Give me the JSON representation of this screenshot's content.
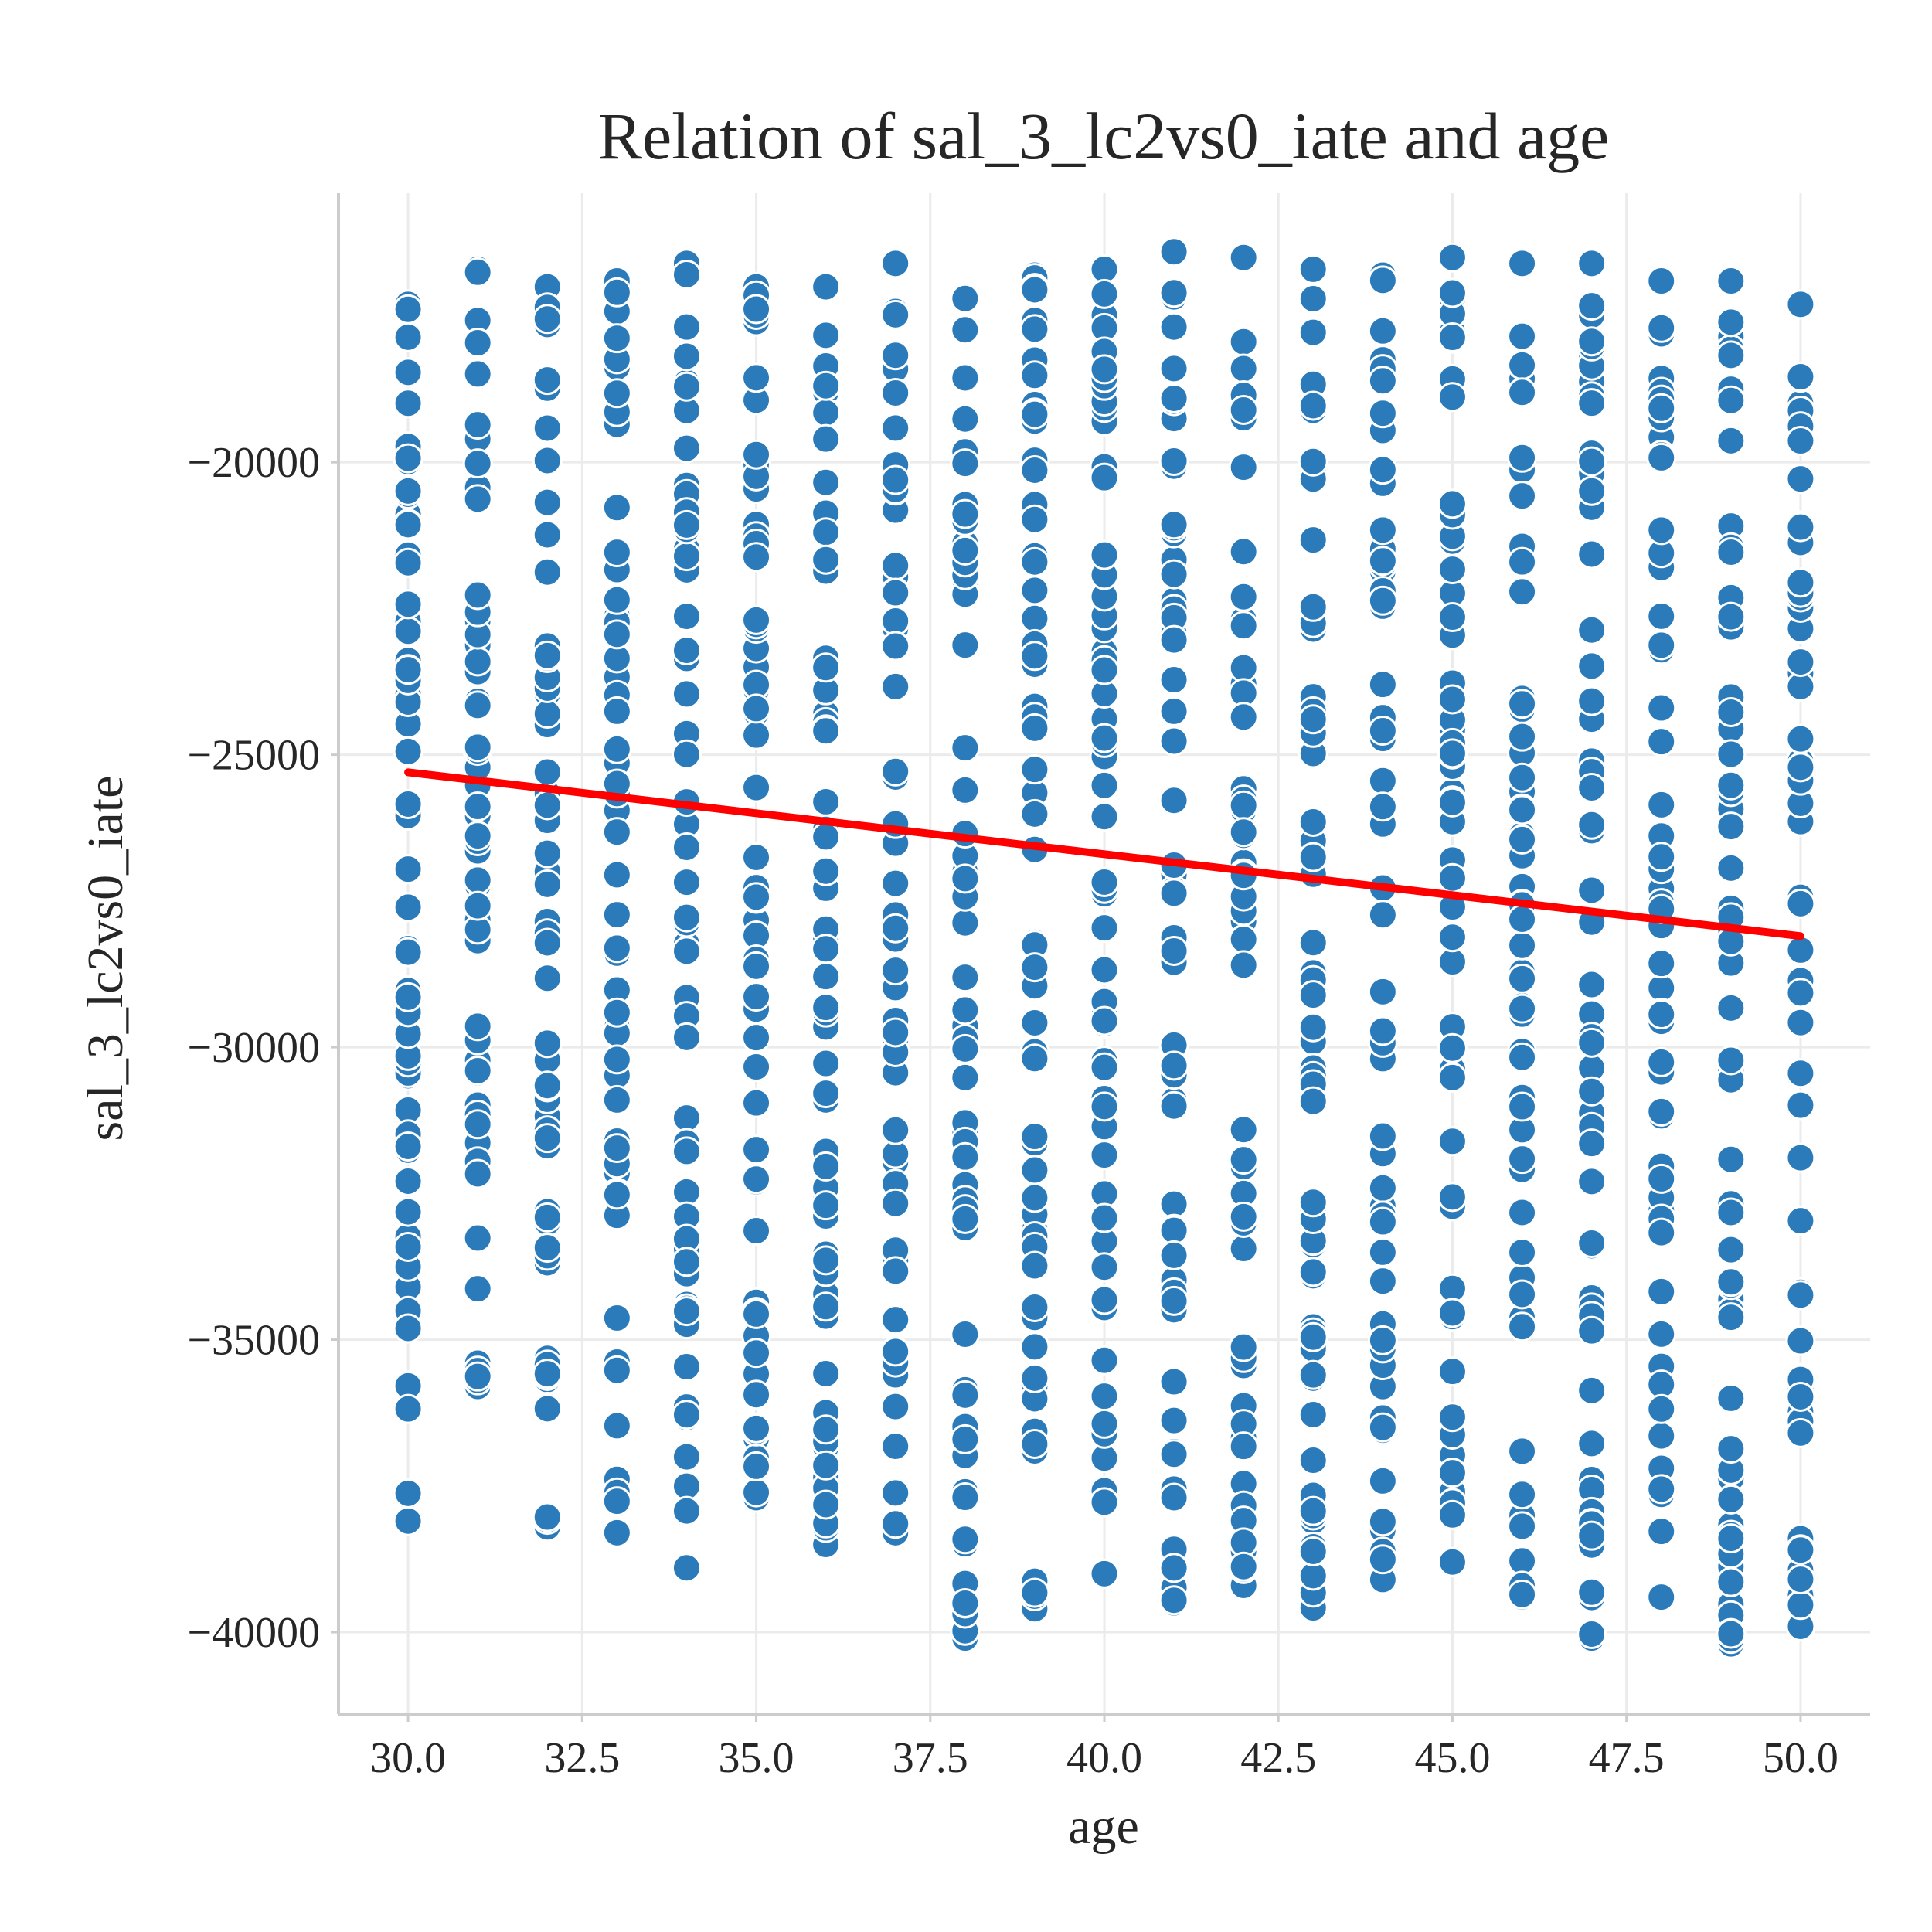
{
  "chart_data": {
    "type": "scatter",
    "title": "Relation of sal_3_lc2vs0_iate and age",
    "xlabel": "age",
    "ylabel": "sal_3_lc2vs0_iate",
    "xlim": [
      29.0,
      51.0
    ],
    "ylim": [
      -41400,
      -15400
    ],
    "xticks": [
      30.0,
      32.5,
      35.0,
      37.5,
      40.0,
      42.5,
      45.0,
      47.5,
      50.0
    ],
    "xtick_labels": [
      "30.0",
      "32.5",
      "35.0",
      "37.5",
      "40.0",
      "42.5",
      "45.0",
      "47.5",
      "50.0"
    ],
    "yticks": [
      -20000,
      -25000,
      -30000,
      -35000,
      -40000
    ],
    "ytick_labels": [
      "−20000",
      "−25000",
      "−30000",
      "−35000",
      "−40000"
    ],
    "grid": true,
    "point_color": "#2b7bba",
    "line_color": "#ff0000",
    "series": [
      {
        "kind": "scatter",
        "columns": [
          {
            "x": 30,
            "min": -38100,
            "max": -17300
          },
          {
            "x": 31,
            "min": -35800,
            "max": -16700
          },
          {
            "x": 32,
            "min": -38200,
            "max": -17000
          },
          {
            "x": 33,
            "min": -38300,
            "max": -16900
          },
          {
            "x": 34,
            "min": -38900,
            "max": -16600
          },
          {
            "x": 35,
            "min": -37700,
            "max": -17000
          },
          {
            "x": 36,
            "min": -38500,
            "max": -17000
          },
          {
            "x": 37,
            "min": -38300,
            "max": -16600
          },
          {
            "x": 38,
            "min": -40100,
            "max": -17200
          },
          {
            "x": 39,
            "min": -39600,
            "max": -16800
          },
          {
            "x": 40,
            "min": -39000,
            "max": -16700
          },
          {
            "x": 41,
            "min": -39500,
            "max": -16400
          },
          {
            "x": 42,
            "min": -39200,
            "max": -16500
          },
          {
            "x": 43,
            "min": -39600,
            "max": -16700
          },
          {
            "x": 44,
            "min": -39100,
            "max": -16800
          },
          {
            "x": 45,
            "min": -38800,
            "max": -16500
          },
          {
            "x": 46,
            "min": -39400,
            "max": -16600
          },
          {
            "x": 47,
            "min": -40100,
            "max": -16600
          },
          {
            "x": 48,
            "min": -39400,
            "max": -16900
          },
          {
            "x": 49,
            "min": -40200,
            "max": -16900
          },
          {
            "x": 50,
            "min": -39900,
            "max": -17300
          }
        ]
      },
      {
        "kind": "line",
        "x": [
          30,
          50
        ],
        "y": [
          -25300,
          -28100
        ]
      }
    ]
  }
}
